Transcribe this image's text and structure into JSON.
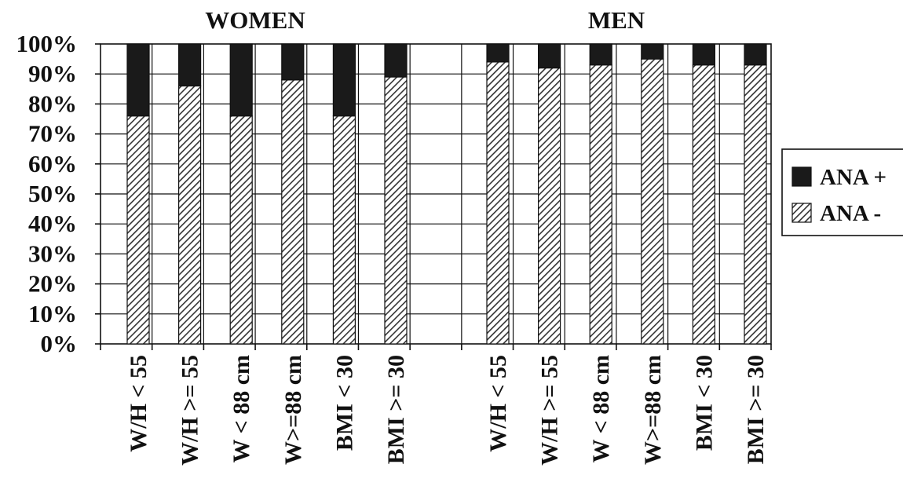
{
  "chart_data": {
    "type": "bar",
    "stacked": true,
    "groups": [
      {
        "title": "WOMEN",
        "categories": [
          "W/H < 55",
          "W/H >= 55",
          "W < 88 cm",
          "W>=88 cm",
          "BMI < 30",
          "BMI >= 30"
        ]
      },
      {
        "title": "MEN",
        "categories": [
          "W/H < 55",
          "W/H >= 55",
          "W < 88 cm",
          "W>=88 cm",
          "BMI < 30",
          "BMI >= 30"
        ]
      }
    ],
    "series": [
      {
        "name": "ANA -",
        "pattern": "hatched",
        "values": [
          [
            76,
            86,
            76,
            88,
            76,
            89
          ],
          [
            94,
            92,
            93,
            95,
            93,
            93
          ]
        ]
      },
      {
        "name": "ANA +",
        "color": "#1a1a1a",
        "values": [
          [
            24,
            14,
            24,
            12,
            24,
            11
          ],
          [
            6,
            8,
            7,
            5,
            7,
            7
          ]
        ]
      }
    ],
    "y_ticks": [
      "0%",
      "10%",
      "20%",
      "30%",
      "40%",
      "50%",
      "60%",
      "70%",
      "80%",
      "90%",
      "100%"
    ],
    "ylim": [
      0,
      100
    ],
    "grid": true,
    "legend": {
      "position": "right",
      "order": [
        "ANA +",
        "ANA -"
      ]
    }
  }
}
